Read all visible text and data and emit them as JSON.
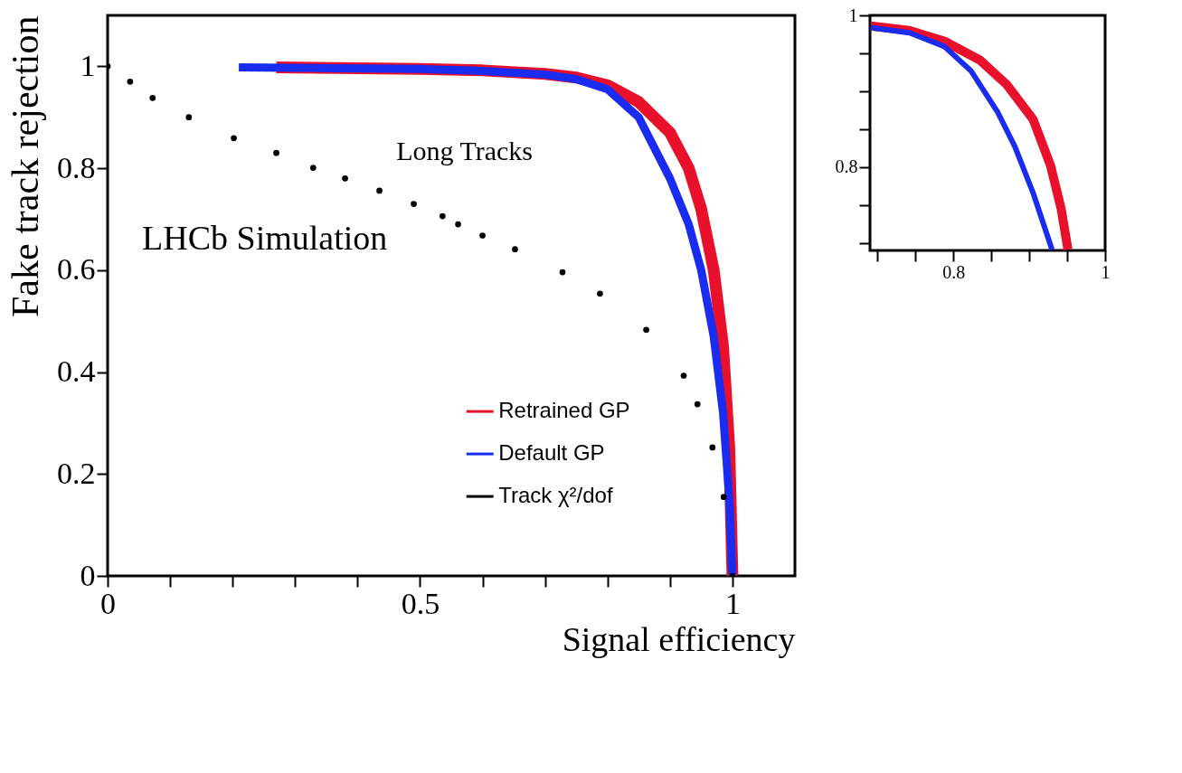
{
  "chart_data": [
    {
      "type": "line",
      "xlabel": "Signal efficiency",
      "ylabel": "Fake track rejection",
      "annotations": [
        "Long Tracks",
        "LHCb Simulation"
      ],
      "xlim": [
        0,
        1.1
      ],
      "ylim": [
        0,
        1.1
      ],
      "xticks": [
        0,
        {
          "value": 0.1,
          "label": null
        },
        {
          "value": 0.2,
          "label": null
        },
        {
          "value": 0.3,
          "label": null
        },
        {
          "value": 0.4,
          "label": null
        },
        0.5,
        {
          "value": 0.6,
          "label": null
        },
        {
          "value": 0.7,
          "label": null
        },
        {
          "value": 0.8,
          "label": null
        },
        {
          "value": 0.9,
          "label": null
        },
        1
      ],
      "yticks": [
        0,
        0.2,
        0.4,
        0.6,
        0.8,
        1
      ],
      "grid": false,
      "legend": "bottom right",
      "series": [
        {
          "name": "Retrained GP",
          "color": "#e8102a",
          "marker": "none",
          "x": [
            0.27,
            0.5,
            0.6,
            0.7,
            0.75,
            0.8,
            0.85,
            0.9,
            0.93,
            0.95,
            0.97,
            0.985,
            0.995,
            1.0
          ],
          "values": [
            0.998,
            0.995,
            0.992,
            0.985,
            0.978,
            0.963,
            0.93,
            0.87,
            0.8,
            0.72,
            0.6,
            0.45,
            0.25,
            0
          ]
        },
        {
          "name": "Default GP",
          "color": "#1a2cf0",
          "marker": "none",
          "x": [
            0.21,
            0.5,
            0.6,
            0.7,
            0.75,
            0.8,
            0.85,
            0.9,
            0.93,
            0.95,
            0.97,
            0.985,
            0.995,
            1.0
          ],
          "values": [
            0.998,
            0.995,
            0.991,
            0.984,
            0.975,
            0.955,
            0.9,
            0.78,
            0.69,
            0.6,
            0.47,
            0.32,
            0.15,
            0
          ]
        },
        {
          "name": "Track χ²/dof",
          "color": "#000000",
          "type": "scatter",
          "marker": "circle",
          "x": [
            0,
            0.036,
            0.072,
            0.13,
            0.202,
            0.27,
            0.329,
            0.38,
            0.435,
            0.49,
            0.536,
            0.561,
            0.6,
            0.652,
            0.728,
            0.788,
            0.862,
            0.922,
            0.944,
            0.968,
            0.986,
            1.0
          ],
          "values": [
            1,
            0.97,
            0.938,
            0.9,
            0.859,
            0.83,
            0.801,
            0.78,
            0.756,
            0.73,
            0.706,
            0.69,
            0.668,
            0.641,
            0.596,
            0.554,
            0.483,
            0.393,
            0.337,
            0.252,
            0.155,
            0
          ]
        }
      ]
    },
    {
      "type": "line",
      "xlim": [
        0.69,
        1.0
      ],
      "ylim": [
        0.69,
        1.0
      ],
      "xticks": [
        {
          "value": 0.7,
          "label": null
        },
        {
          "value": 0.75,
          "label": null
        },
        0.8,
        {
          "value": 0.85,
          "label": null
        },
        {
          "value": 0.9,
          "label": null
        },
        {
          "value": 0.95,
          "label": null
        },
        1
      ],
      "yticks": [
        {
          "value": 0.7,
          "label": null
        },
        {
          "value": 0.75,
          "label": null
        },
        0.8,
        {
          "value": 0.85,
          "label": null
        },
        {
          "value": 0.9,
          "label": null
        },
        {
          "value": 0.95,
          "label": null
        },
        1
      ],
      "grid": false,
      "series": [
        {
          "color": "#e8102a",
          "marker": "none",
          "x": [
            0.691,
            0.742,
            0.788,
            0.835,
            0.87,
            0.905,
            0.928,
            0.942,
            0.951
          ],
          "values": [
            0.986,
            0.98,
            0.966,
            0.941,
            0.909,
            0.863,
            0.802,
            0.745,
            0.691
          ]
        },
        {
          "color": "#1a2cf0",
          "marker": "none",
          "x": [
            0.691,
            0.742,
            0.788,
            0.823,
            0.858,
            0.881,
            0.905,
            0.93
          ],
          "values": [
            0.984,
            0.977,
            0.959,
            0.927,
            0.873,
            0.827,
            0.766,
            0.691
          ]
        }
      ]
    }
  ]
}
